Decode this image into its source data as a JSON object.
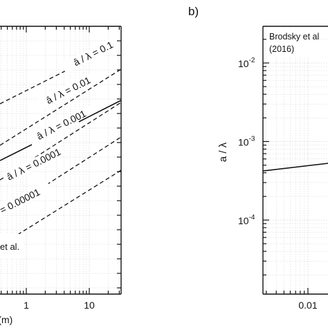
{
  "chart_data": [
    {
      "panel": "a",
      "type": "line",
      "x_scale": "log",
      "y_scale": "log",
      "grid": true,
      "x_tick_labels": [
        "1",
        "10"
      ],
      "x_label_fragment": "h (m)",
      "guides": [
        {
          "label": "â / λ = 0.1",
          "ratio": 0.1,
          "style": "dashed"
        },
        {
          "label": "â / λ = 0.01",
          "ratio": 0.01,
          "style": "dashed"
        },
        {
          "label": "â / λ = 0.001",
          "ratio": 0.001,
          "style": "dashed"
        },
        {
          "label": "â / λ = 0.0001",
          "ratio": 0.0001,
          "style": "dashed"
        },
        {
          "label": "= 0.00001",
          "ratio": 1e-05,
          "style": "dashed"
        }
      ],
      "series": [
        {
          "style": "solid",
          "segment": "upper",
          "along_ratio": 0.001
        },
        {
          "style": "solid",
          "segment": "lower",
          "along_ratio": 0.001
        }
      ],
      "legend": {
        "text": "et al."
      }
    },
    {
      "panel": "b",
      "panel_label": "b)",
      "type": "line",
      "x_scale": "log",
      "y_scale": "log",
      "grid": true,
      "ylabel": "a / λ",
      "y_ticks": [
        {
          "base": "10",
          "exp": "-2",
          "value": 0.01
        },
        {
          "base": "10",
          "exp": "-3",
          "value": 0.001
        },
        {
          "base": "10",
          "exp": "-4",
          "value": 0.0001
        }
      ],
      "x_tick_labels": [
        "0.01"
      ],
      "legend": {
        "line1": "Brodsky et al",
        "line2": "(2016)"
      },
      "series": [
        {
          "style": "solid",
          "x": [
            0.0012,
            0.0045
          ],
          "y": [
            0.0004,
            0.0005
          ]
        }
      ]
    }
  ],
  "colors": {
    "axis": "#111111",
    "grid": "#cfcfcf",
    "background": "#ffffff"
  }
}
